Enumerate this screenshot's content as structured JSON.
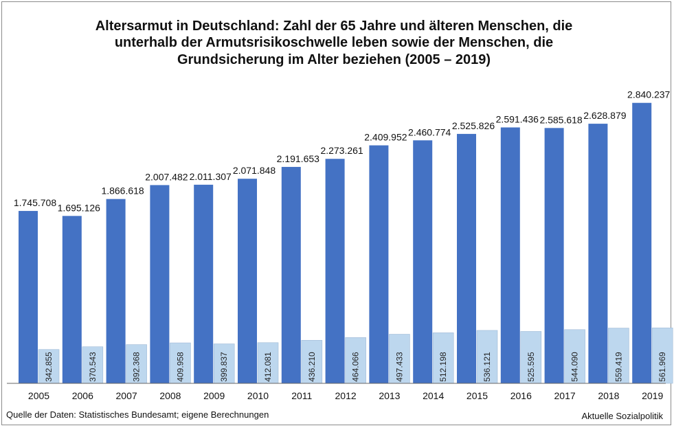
{
  "chart_data": {
    "type": "bar",
    "title_lines": [
      "Altersarmut in Deutschland: Zahl der 65 Jahre und älteren Menschen, die",
      "unterhalb der Armutsrisikoschwelle leben sowie der Menschen, die",
      "Grundsicherung im Alter beziehen (2005 – 2019)"
    ],
    "categories": [
      "2005",
      "2006",
      "2007",
      "2008",
      "2009",
      "2010",
      "2011",
      "2012",
      "2013",
      "2014",
      "2015",
      "2016",
      "2017",
      "2018",
      "2019"
    ],
    "series": [
      {
        "values": [
          1745708,
          1695126,
          1866618,
          2007482,
          2011307,
          2071848,
          2191653,
          2273261,
          2409952,
          2460774,
          2525826,
          2591436,
          2585618,
          2628879,
          2840237
        ],
        "labels": [
          "1.745.708",
          "1.695.126",
          "1.866.618",
          "2.007.482",
          "2.011.307",
          "2.071.848",
          "2.191.653",
          "2.273.261",
          "2.409.952",
          "2.460.774",
          "2.525.826",
          "2.591.436",
          "2.585.618",
          "2.628.879",
          "2.840.237"
        ],
        "color": "#4472C4",
        "label_position": "top"
      },
      {
        "values": [
          342855,
          370543,
          392368,
          409958,
          399837,
          412081,
          436210,
          464066,
          497433,
          512198,
          536121,
          525595,
          544090,
          559419,
          561969
        ],
        "labels": [
          "342.855",
          "370.543",
          "392.368",
          "409.958",
          "399.837",
          "412.081",
          "436.210",
          "464.066",
          "497.433",
          "512.198",
          "536.121",
          "525.595",
          "544.090",
          "559.419",
          "561.969"
        ],
        "color": "#BDD7EE",
        "label_position": "inside-rotated"
      }
    ],
    "ylim": [
      0,
      3200000
    ],
    "grid": false,
    "legend": "none"
  },
  "footer": {
    "source": "Quelle der Daten: Statistisches Bundesamt; eigene Berechnungen",
    "credit": "Aktuelle Sozialpolitik"
  }
}
